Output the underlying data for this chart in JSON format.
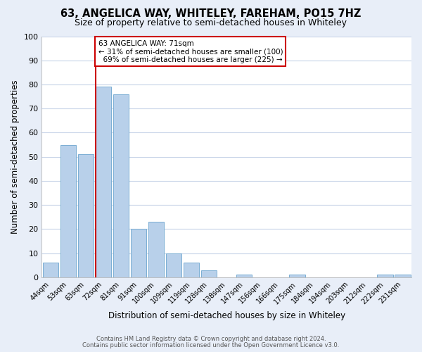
{
  "title": "63, ANGELICA WAY, WHITELEY, FAREHAM, PO15 7HZ",
  "subtitle": "Size of property relative to semi-detached houses in Whiteley",
  "xlabel": "Distribution of semi-detached houses by size in Whiteley",
  "ylabel": "Number of semi-detached properties",
  "bar_labels": [
    "44sqm",
    "53sqm",
    "63sqm",
    "72sqm",
    "81sqm",
    "91sqm",
    "100sqm",
    "109sqm",
    "119sqm",
    "128sqm",
    "138sqm",
    "147sqm",
    "156sqm",
    "166sqm",
    "175sqm",
    "184sqm",
    "194sqm",
    "203sqm",
    "212sqm",
    "222sqm",
    "231sqm"
  ],
  "bar_values": [
    6,
    55,
    51,
    79,
    76,
    20,
    23,
    10,
    6,
    3,
    0,
    1,
    0,
    0,
    1,
    0,
    0,
    0,
    0,
    1,
    1
  ],
  "bar_color": "#b8d0ea",
  "bar_edge_color": "#7aaed4",
  "reference_line_color": "#cc0000",
  "annotation_line1": "63 ANGELICA WAY: 71sqm",
  "annotation_line2": "← 31% of semi-detached houses are smaller (100)",
  "annotation_line3": "  69% of semi-detached houses are larger (225) →",
  "annotation_box_color": "white",
  "annotation_box_edge_color": "#cc0000",
  "ylim": [
    0,
    100
  ],
  "footer_line1": "Contains HM Land Registry data © Crown copyright and database right 2024.",
  "footer_line2": "Contains public sector information licensed under the Open Government Licence v3.0.",
  "background_color": "#e8eef8",
  "plot_background_color": "white",
  "grid_color": "#c8d4e8",
  "title_fontsize": 10.5,
  "subtitle_fontsize": 9
}
